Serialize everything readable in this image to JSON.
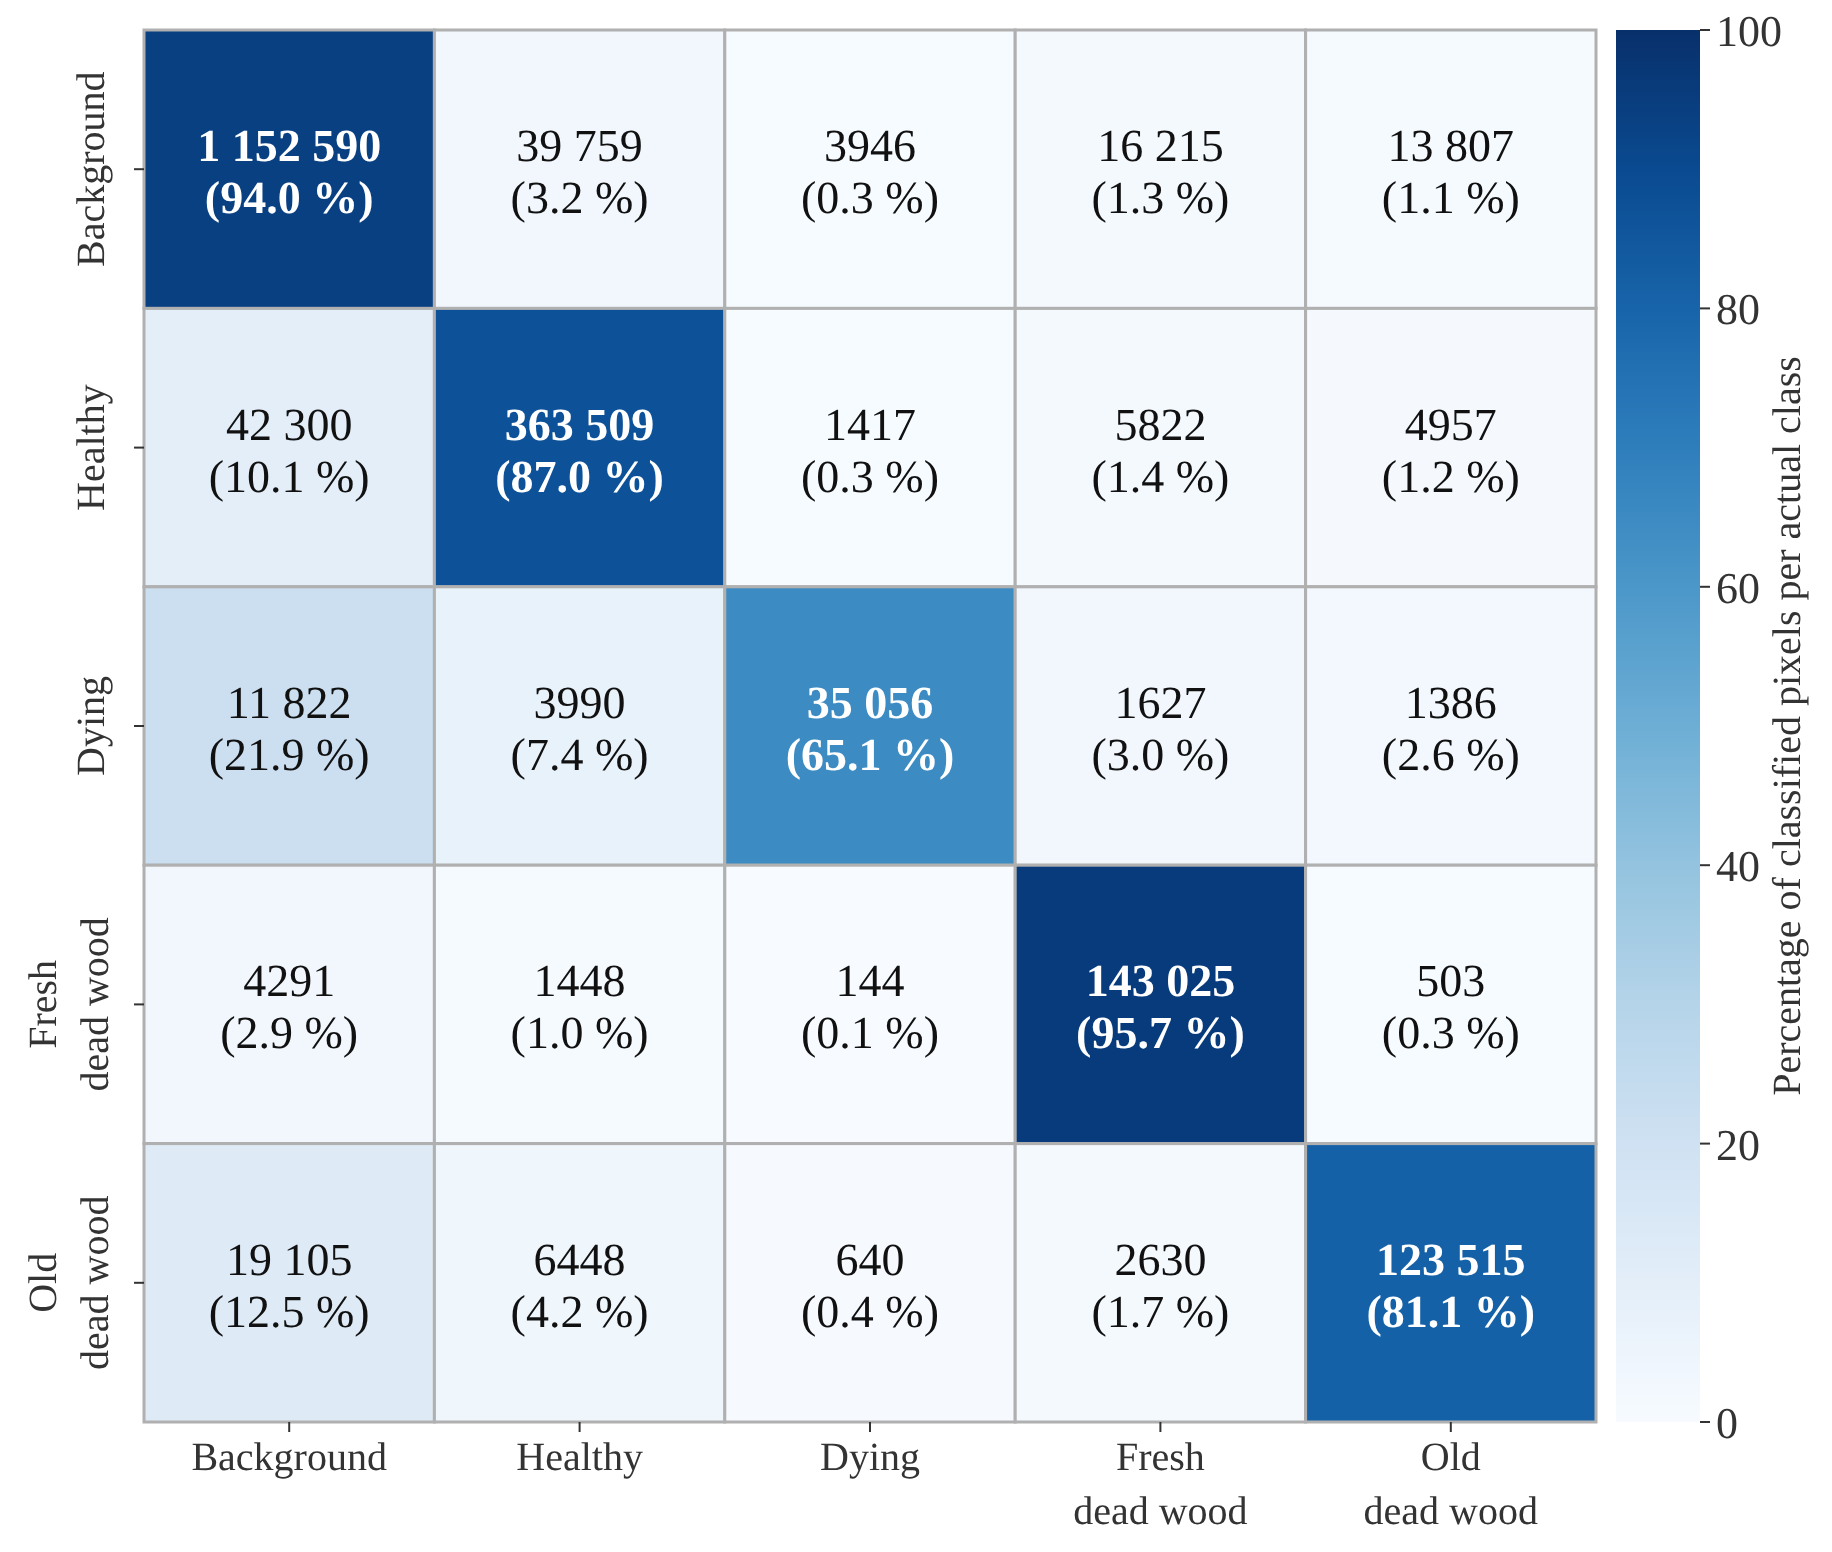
{
  "chart_data": {
    "type": "heatmap",
    "categories": [
      "Background",
      "Healthy",
      "Dying",
      "Fresh dead wood",
      "Old dead wood"
    ],
    "y_categories": [
      "Background",
      "Healthy",
      "Dying",
      "Fresh dead wood",
      "Old dead wood"
    ],
    "cells": [
      [
        94.0,
        3.2,
        0.3,
        1.3,
        1.1
      ],
      [
        10.1,
        87.0,
        0.3,
        1.4,
        1.2
      ],
      [
        21.9,
        7.4,
        65.1,
        3.0,
        2.6
      ],
      [
        2.9,
        1.0,
        0.1,
        95.7,
        0.3
      ],
      [
        12.5,
        4.2,
        0.4,
        1.7,
        81.1
      ]
    ],
    "cell_labels": [
      [
        "1 152 590\n(94.0 %)",
        "39 759\n(3.2 %)",
        "3946\n(0.3 %)",
        "16 215\n(1.3 %)",
        "13 807\n(1.1 %)"
      ],
      [
        "42 300\n(10.1 %)",
        "363 509\n(87.0 %)",
        "1417\n(0.3 %)",
        "5822\n(1.4 %)",
        "4957\n(1.2 %)"
      ],
      [
        "11 822\n(21.9 %)",
        "3990\n(7.4 %)",
        "35 056\n(65.1 %)",
        "1627\n(3.0 %)",
        "1386\n(2.6 %)"
      ],
      [
        "4291\n(2.9 %)",
        "1448\n(1.0 %)",
        "144\n(0.1 %)",
        "143 025\n(95.7 %)",
        "503\n(0.3 %)"
      ],
      [
        "19 105\n(12.5 %)",
        "6448\n(4.2 %)",
        "640\n(0.4 %)",
        "2630\n(1.7 %)",
        "123 515\n(81.1 %)"
      ]
    ],
    "clim": [
      0,
      100
    ],
    "cticks": [
      0,
      20,
      40,
      60,
      80,
      100
    ],
    "clabel": "Percentage of classified pixels per actual class"
  }
}
